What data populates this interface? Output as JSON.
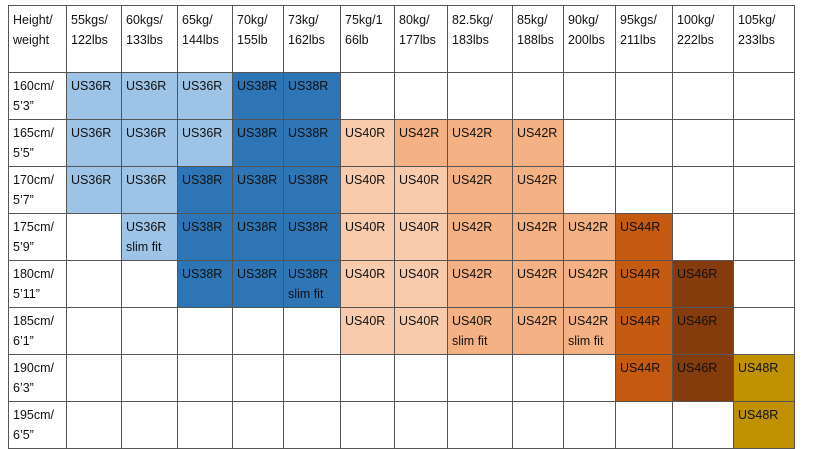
{
  "table": {
    "header": [
      "Height/\nweight",
      "55kgs/\n122lbs",
      "60kgs/\n133lbs",
      "65kg/\n144lbs",
      "70kg/\n155lb",
      "73kg/\n162lbs",
      "75kg/1\n66lb",
      "80kg/\n177lbs",
      "82.5kg/\n183lbs",
      "85kg/\n188lbs",
      "90kg/\n200lbs",
      "95kgs/\n211lbs",
      "100kg/\n222lbs",
      "105kg/\n233lbs"
    ],
    "rows": [
      {
        "label": "160cm/\n5’3”",
        "cells": [
          {
            "text": "US36R",
            "color": "#9dc3e6"
          },
          {
            "text": "US36R",
            "color": "#9dc3e6"
          },
          {
            "text": "US36R",
            "color": "#9dc3e6"
          },
          {
            "text": "US38R",
            "color": "#2e75b6"
          },
          {
            "text": "US38R",
            "color": "#2e75b6"
          },
          null,
          null,
          null,
          null,
          null,
          null,
          null,
          null
        ]
      },
      {
        "label": "165cm/\n5’5”",
        "cells": [
          {
            "text": "US36R",
            "color": "#9dc3e6"
          },
          {
            "text": "US36R",
            "color": "#9dc3e6"
          },
          {
            "text": "US36R",
            "color": "#9dc3e6"
          },
          {
            "text": "US38R",
            "color": "#2e75b6"
          },
          {
            "text": "US38R",
            "color": "#2e75b6"
          },
          {
            "text": "US40R",
            "color": "#f8cbad"
          },
          {
            "text": "US42R",
            "color": "#f4b183"
          },
          {
            "text": "US42R",
            "color": "#f4b183"
          },
          {
            "text": "US42R",
            "color": "#f4b183"
          },
          null,
          null,
          null,
          null
        ]
      },
      {
        "label": "170cm/\n5’7”",
        "cells": [
          {
            "text": "US36R",
            "color": "#9dc3e6"
          },
          {
            "text": "US36R",
            "color": "#9dc3e6"
          },
          {
            "text": "US38R",
            "color": "#2e75b6"
          },
          {
            "text": "US38R",
            "color": "#2e75b6"
          },
          {
            "text": "US38R",
            "color": "#2e75b6"
          },
          {
            "text": "US40R",
            "color": "#f8cbad"
          },
          {
            "text": "US40R",
            "color": "#f8cbad"
          },
          {
            "text": "US42R",
            "color": "#f4b183"
          },
          {
            "text": "US42R",
            "color": "#f4b183"
          },
          null,
          null,
          null,
          null
        ]
      },
      {
        "label": "175cm/\n5’9”",
        "cells": [
          null,
          {
            "text": "US36R\nslim fit",
            "color": "#9dc3e6"
          },
          {
            "text": "US38R",
            "color": "#2e75b6"
          },
          {
            "text": "US38R",
            "color": "#2e75b6"
          },
          {
            "text": "US38R",
            "color": "#2e75b6"
          },
          {
            "text": "US40R",
            "color": "#f8cbad"
          },
          {
            "text": "US40R",
            "color": "#f8cbad"
          },
          {
            "text": "US42R",
            "color": "#f4b183"
          },
          {
            "text": "US42R",
            "color": "#f4b183"
          },
          {
            "text": "US42R",
            "color": "#f4b183"
          },
          {
            "text": "US44R",
            "color": "#c55a11"
          },
          null,
          null
        ]
      },
      {
        "label": "180cm/\n5’11”",
        "cells": [
          null,
          null,
          {
            "text": "US38R",
            "color": "#2e75b6"
          },
          {
            "text": "US38R",
            "color": "#2e75b6"
          },
          {
            "text": "US38R\nslim fit",
            "color": "#2e75b6"
          },
          {
            "text": "US40R",
            "color": "#f8cbad"
          },
          {
            "text": "US40R",
            "color": "#f8cbad"
          },
          {
            "text": "US42R",
            "color": "#f4b183"
          },
          {
            "text": "US42R",
            "color": "#f4b183"
          },
          {
            "text": "US42R",
            "color": "#f4b183"
          },
          {
            "text": "US44R",
            "color": "#c55a11"
          },
          {
            "text": "US46R",
            "color": "#843c0c"
          },
          null
        ]
      },
      {
        "label": "185cm/\n6’1”",
        "cells": [
          null,
          null,
          null,
          null,
          null,
          {
            "text": "US40R",
            "color": "#f8cbad"
          },
          {
            "text": "US40R",
            "color": "#f8cbad"
          },
          {
            "text": "US40R\nslim fit",
            "color": "#f4b183"
          },
          {
            "text": "US42R",
            "color": "#f4b183"
          },
          {
            "text": "US42R\nslim fit",
            "color": "#f4b183"
          },
          {
            "text": "US44R",
            "color": "#c55a11"
          },
          {
            "text": "US46R",
            "color": "#843c0c"
          },
          null
        ]
      },
      {
        "label": "190cm/\n6’3”",
        "cells": [
          null,
          null,
          null,
          null,
          null,
          null,
          null,
          null,
          null,
          null,
          {
            "text": "US44R",
            "color": "#c55a11"
          },
          {
            "text": "US46R",
            "color": "#843c0c"
          },
          {
            "text": "US48R",
            "color": "#bf9000"
          }
        ]
      },
      {
        "label": "195cm/\n6’5”",
        "cells": [
          null,
          null,
          null,
          null,
          null,
          null,
          null,
          null,
          null,
          null,
          null,
          null,
          {
            "text": "US48R",
            "color": "#bf9000"
          }
        ]
      }
    ]
  }
}
